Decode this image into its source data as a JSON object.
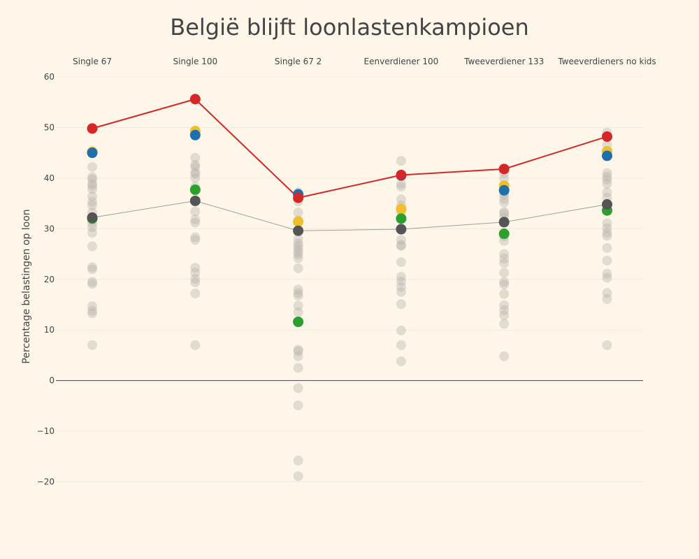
{
  "chart_data": {
    "type": "scatter",
    "title": "België blijft loonlastenkampioen",
    "ylabel": "Percentage belastingen op loon",
    "categories": [
      "Single 67",
      "Single 100",
      "Single 67 2",
      "Eenverdiener 100",
      "Tweeverdiener 133",
      "Tweeverdieners no kids"
    ],
    "ylim": [
      -23,
      62
    ],
    "yticks": [
      60,
      50,
      40,
      30,
      20,
      10,
      0,
      -10,
      -20
    ],
    "ytick_labels": [
      "60",
      "50",
      "40",
      "30",
      "20",
      "10",
      "0",
      "−10",
      "−20"
    ],
    "grid": true,
    "colors": {
      "background": "#fdf6e9",
      "grid": "#f1ebde",
      "zero_line": "#444444",
      "other_countries": "#b9b5ad",
      "highlight_line": "#d62728",
      "average_line": "#a39f97",
      "red": "#d62728",
      "blue": "#1f6fad",
      "yellow": "#f0c02c",
      "green": "#2ca02c",
      "dark": "#555555"
    },
    "background_points": [
      [
        42.2,
        40.2,
        39.8,
        38.9,
        38.5,
        37.8,
        36.4,
        35.3,
        34.6,
        33.2,
        31.1,
        30.3,
        29.2,
        26.5,
        22.4,
        22.0,
        19.5,
        19.1,
        14.7,
        13.8,
        13.3,
        7.0
      ],
      [
        44.0,
        42.6,
        42.2,
        41.1,
        40.8,
        40.0,
        38.3,
        33.4,
        31.8,
        31.2,
        28.3,
        27.8,
        22.3,
        21.3,
        20.1,
        19.4,
        17.2,
        7.0
      ],
      [
        37.2,
        36.6,
        35.4,
        33.2,
        31.6,
        28.0,
        27.1,
        26.6,
        26.0,
        25.4,
        24.9,
        24.2,
        22.2,
        18.0,
        17.3,
        16.8,
        14.8,
        13.5,
        6.1,
        5.8,
        4.8,
        2.5,
        -1.5,
        -4.9,
        -15.8,
        -18.9
      ],
      [
        43.4,
        40.8,
        38.8,
        38.3,
        35.8,
        34.6,
        33.3,
        27.8,
        26.8,
        26.6,
        23.4,
        20.5,
        19.6,
        18.5,
        17.5,
        15.1,
        9.9,
        7.0,
        3.8
      ],
      [
        41.0,
        39.9,
        38.6,
        37.2,
        36.7,
        35.9,
        35.2,
        33.3,
        33.0,
        32.3,
        28.5,
        27.6,
        25.0,
        24.1,
        23.2,
        21.3,
        19.5,
        19.0,
        17.1,
        14.9,
        13.9,
        12.9,
        11.2,
        4.8
      ],
      [
        49.0,
        46.6,
        41.0,
        40.3,
        39.7,
        38.9,
        37.2,
        36.1,
        31.1,
        30.1,
        29.2,
        28.6,
        26.2,
        23.7,
        21.1,
        20.3,
        17.3,
        16.1,
        7.0
      ]
    ],
    "series": [
      {
        "values": [
          45.2,
          49.3,
          31.4,
          33.9,
          38.5,
          45.3
        ],
        "color": "#f0c02c"
      },
      {
        "values": [
          45.0,
          48.5,
          36.8,
          40.5,
          37.6,
          44.4
        ],
        "color": "#1f6fad"
      },
      {
        "values": [
          32.0,
          37.7,
          11.6,
          32.0,
          29.0,
          33.6
        ],
        "color": "#2ca02c"
      },
      {
        "values": [
          32.2,
          35.5,
          29.6,
          29.9,
          31.3,
          34.8
        ],
        "color": "#555555",
        "line": true,
        "line_color": "#a39f97"
      },
      {
        "values": [
          49.8,
          55.6,
          36.1,
          40.6,
          41.8,
          48.2
        ],
        "color": "#d62728",
        "line": true,
        "line_color": "#d62728"
      }
    ]
  }
}
